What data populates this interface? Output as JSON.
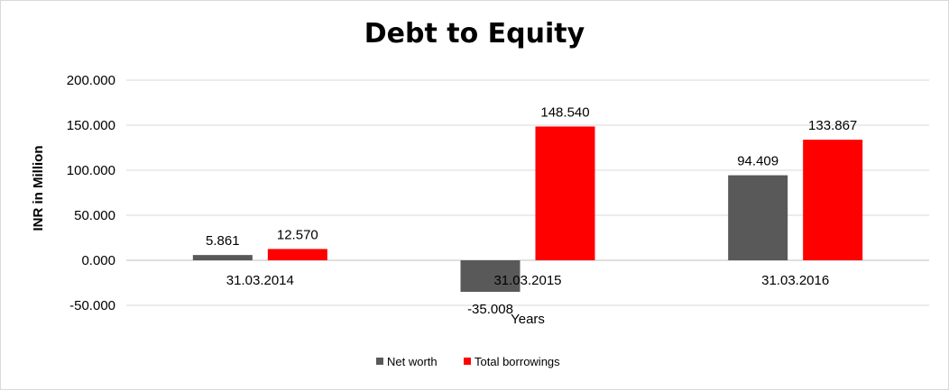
{
  "chart_data": {
    "type": "bar",
    "title": "Debt to Equity",
    "xlabel": "Years",
    "ylabel": "INR in Million",
    "categories": [
      "31.03.2014",
      "31.03.2015",
      "31.03.2016"
    ],
    "series": [
      {
        "name": "Net worth",
        "values": [
          5.861,
          -35.008,
          94.409
        ],
        "labels": [
          "5.861",
          "-35.008",
          "94.409"
        ],
        "color": "#595959"
      },
      {
        "name": "Total borrowings",
        "values": [
          12.57,
          148.54,
          133.867
        ],
        "labels": [
          "12.570",
          "148.540",
          "133.867"
        ],
        "color": "#ff0000"
      }
    ],
    "ylim": [
      -50,
      200
    ],
    "yticks": [
      -50,
      0,
      50,
      100,
      150,
      200
    ],
    "ytick_labels": [
      "-50.000",
      "0.000",
      "50.000",
      "100.000",
      "150.000",
      "200.000"
    ],
    "grid": true,
    "legend": "bottom"
  }
}
